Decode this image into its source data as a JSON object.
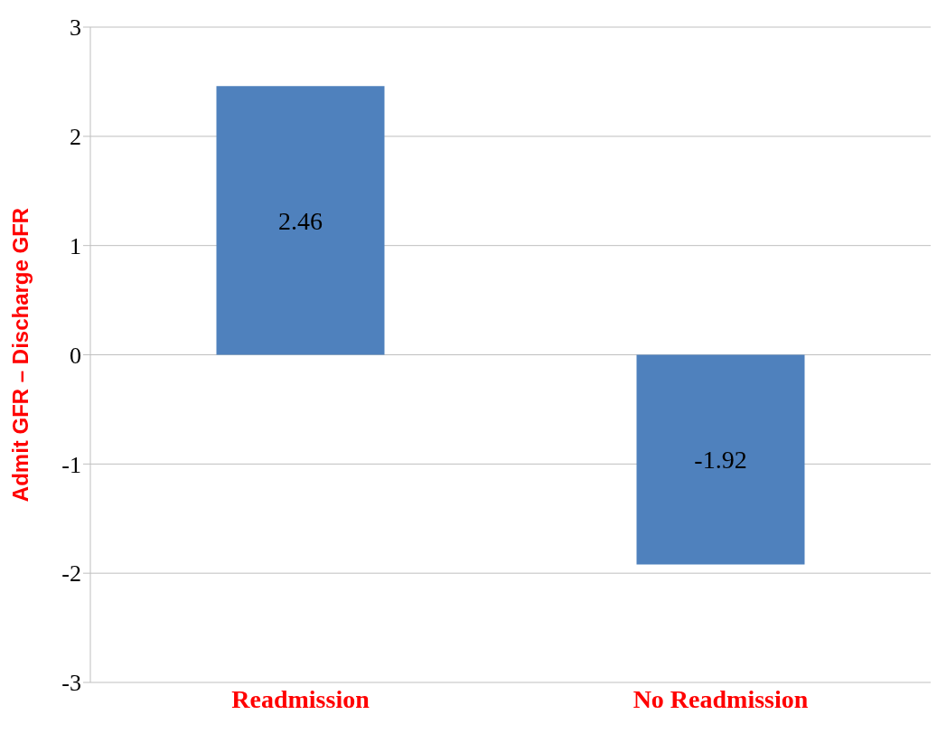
{
  "chart_data": {
    "type": "bar",
    "ylabel": "Admit GFR – Discharge GFR",
    "categories": [
      "Readmission",
      "No Readmission"
    ],
    "values": [
      2.46,
      -1.92
    ],
    "color": "#4f81bd",
    "ylim": [
      -3,
      3
    ],
    "yticks": [
      -3,
      -2,
      -1,
      0,
      1,
      2,
      3
    ],
    "grid": "y",
    "data_labels": true
  }
}
